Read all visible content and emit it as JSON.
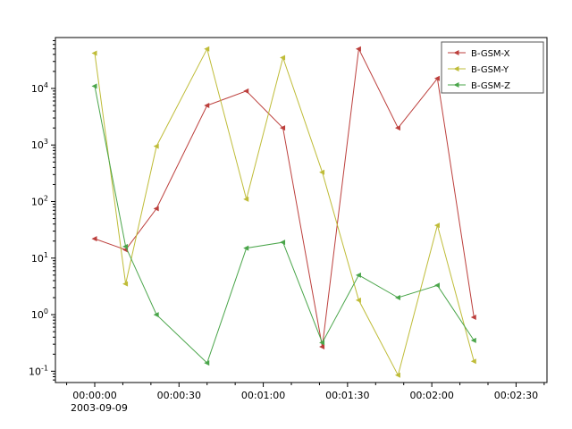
{
  "figure": {
    "background": "#ffffff",
    "frame_color": "#000000",
    "legend_border_color": "#555555"
  },
  "chart_data": {
    "type": "line",
    "title": "",
    "xlabel": "",
    "ylabel": "",
    "grid": false,
    "x_date_label": "2003-09-09",
    "xlim_seconds": [
      -14,
      161
    ],
    "ylog_lim": [
      -1.2,
      4.9
    ],
    "x_ticks": [
      {
        "t": 0,
        "label": "00:00:00"
      },
      {
        "t": 30,
        "label": "00:00:30"
      },
      {
        "t": 60,
        "label": "00:01:00"
      },
      {
        "t": 90,
        "label": "00:01:30"
      },
      {
        "t": 120,
        "label": "00:02:00"
      },
      {
        "t": 150,
        "label": "00:02:30"
      }
    ],
    "x_minor_step": 10,
    "y_tick_exponents": [
      -1,
      0,
      1,
      2,
      3,
      4
    ],
    "x": [
      0,
      11,
      22,
      40,
      54,
      67,
      81,
      94,
      108,
      122,
      135
    ],
    "series": [
      {
        "name": "B-GSM-X",
        "color": "#bc3f3c",
        "values": [
          22,
          14,
          75,
          5000,
          9000,
          2000,
          0.27,
          50000,
          2000,
          15000,
          0.9
        ]
      },
      {
        "name": "B-GSM-Y",
        "color": "#bfbc38",
        "values": [
          42000,
          3.5,
          950,
          50000,
          110,
          35000,
          330,
          1.8,
          0.085,
          38,
          0.15
        ]
      },
      {
        "name": "B-GSM-Z",
        "color": "#4aa54a",
        "values": [
          11000,
          16,
          1.0,
          0.14,
          15,
          19,
          0.32,
          5,
          2,
          3.3,
          0.35
        ]
      }
    ],
    "legend": {
      "position": "upper right",
      "entries": [
        "B-GSM-X",
        "B-GSM-Y",
        "B-GSM-Z"
      ]
    }
  }
}
